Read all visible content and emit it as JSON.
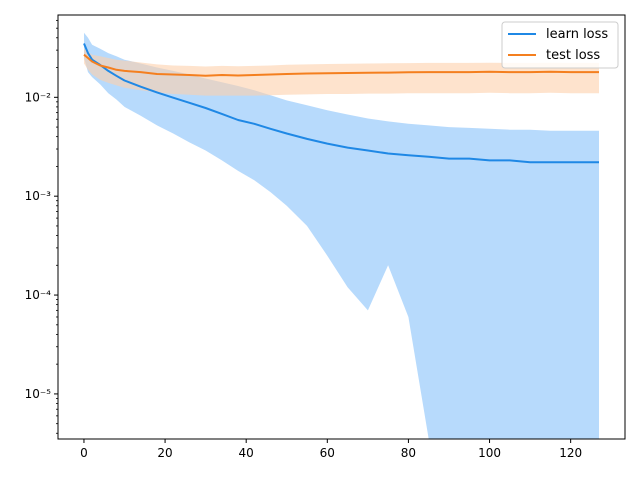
{
  "chart_data": {
    "type": "line",
    "title": "",
    "xlabel": "",
    "ylabel": "",
    "y_scale": "log",
    "xlim": [
      -6.4,
      133.4
    ],
    "ylim": [
      3.5e-06,
      0.068
    ],
    "x_ticks": [
      0,
      20,
      40,
      60,
      80,
      100,
      120
    ],
    "x_tick_labels": [
      "0",
      "20",
      "40",
      "60",
      "80",
      "100",
      "120"
    ],
    "y_ticks": [
      1e-05,
      0.0001,
      0.001,
      0.01
    ],
    "y_tick_labels": [
      "10⁻⁵",
      "10⁻⁴",
      "10⁻³",
      "10⁻²"
    ],
    "grid": false,
    "legend_position": "top-right",
    "series": [
      {
        "name": "learn loss",
        "color": "#1f88e5",
        "band_color": "#9fcdfb",
        "x": [
          0,
          1,
          2,
          4,
          6,
          8,
          10,
          14,
          18,
          22,
          26,
          30,
          34,
          38,
          42,
          46,
          50,
          55,
          60,
          65,
          70,
          75,
          80,
          85,
          90,
          95,
          100,
          105,
          110,
          115,
          120,
          124,
          127
        ],
        "mean": [
          0.035,
          0.028,
          0.024,
          0.0212,
          0.0185,
          0.0165,
          0.0148,
          0.0128,
          0.0112,
          0.0099,
          0.0088,
          0.0078,
          0.0068,
          0.0059,
          0.0054,
          0.0048,
          0.0043,
          0.0038,
          0.0034,
          0.0031,
          0.0029,
          0.0027,
          0.0026,
          0.0025,
          0.0024,
          0.0024,
          0.0023,
          0.0023,
          0.0022,
          0.0022,
          0.0022,
          0.0022,
          0.0022
        ],
        "upper": [
          0.045,
          0.04,
          0.034,
          0.031,
          0.028,
          0.026,
          0.024,
          0.022,
          0.02,
          0.0185,
          0.017,
          0.0155,
          0.0142,
          0.013,
          0.0118,
          0.0105,
          0.0093,
          0.0083,
          0.0074,
          0.0067,
          0.0061,
          0.0057,
          0.0054,
          0.0052,
          0.005,
          0.0049,
          0.0048,
          0.0047,
          0.0047,
          0.0046,
          0.0046,
          0.0046,
          0.0046
        ],
        "lower": [
          0.025,
          0.018,
          0.016,
          0.0135,
          0.011,
          0.0095,
          0.008,
          0.0065,
          0.0052,
          0.0043,
          0.0035,
          0.0029,
          0.0023,
          0.0018,
          0.00145,
          0.0011,
          0.0008,
          0.0005,
          0.00025,
          0.00012,
          7e-05,
          0.0002,
          6e-05,
          3.5e-06,
          3.5e-06,
          3.5e-06,
          3.5e-06,
          3.5e-06,
          3.5e-06,
          3.5e-06,
          3.5e-06,
          3.5e-06,
          3.5e-06
        ]
      },
      {
        "name": "test loss",
        "color": "#f47f1f",
        "band_color": "#fdd1ac",
        "x": [
          0,
          1,
          2,
          4,
          6,
          8,
          10,
          14,
          18,
          22,
          26,
          30,
          34,
          38,
          42,
          46,
          50,
          55,
          60,
          65,
          70,
          75,
          80,
          85,
          90,
          95,
          100,
          105,
          110,
          115,
          120,
          124,
          127
        ],
        "mean": [
          0.027,
          0.025,
          0.023,
          0.021,
          0.02,
          0.019,
          0.0185,
          0.018,
          0.0172,
          0.017,
          0.0168,
          0.0165,
          0.0168,
          0.0166,
          0.0168,
          0.017,
          0.0172,
          0.0174,
          0.0175,
          0.0176,
          0.0177,
          0.0178,
          0.0179,
          0.018,
          0.018,
          0.018,
          0.0181,
          0.018,
          0.018,
          0.0181,
          0.018,
          0.018,
          0.018
        ],
        "upper": [
          0.031,
          0.029,
          0.027,
          0.026,
          0.025,
          0.024,
          0.0235,
          0.0225,
          0.0215,
          0.021,
          0.0208,
          0.0205,
          0.0208,
          0.0206,
          0.0208,
          0.021,
          0.0213,
          0.0215,
          0.0217,
          0.0219,
          0.022,
          0.0221,
          0.0222,
          0.0223,
          0.0223,
          0.0223,
          0.0224,
          0.0223,
          0.0223,
          0.0224,
          0.0223,
          0.0223,
          0.0223
        ],
        "lower": [
          0.022,
          0.019,
          0.017,
          0.015,
          0.014,
          0.0132,
          0.0125,
          0.0118,
          0.0112,
          0.0108,
          0.0106,
          0.0104,
          0.0104,
          0.0104,
          0.0104,
          0.0105,
          0.0106,
          0.0107,
          0.0108,
          0.0108,
          0.0109,
          0.0109,
          0.011,
          0.011,
          0.011,
          0.011,
          0.0111,
          0.011,
          0.011,
          0.0111,
          0.011,
          0.011,
          0.011
        ]
      }
    ]
  }
}
